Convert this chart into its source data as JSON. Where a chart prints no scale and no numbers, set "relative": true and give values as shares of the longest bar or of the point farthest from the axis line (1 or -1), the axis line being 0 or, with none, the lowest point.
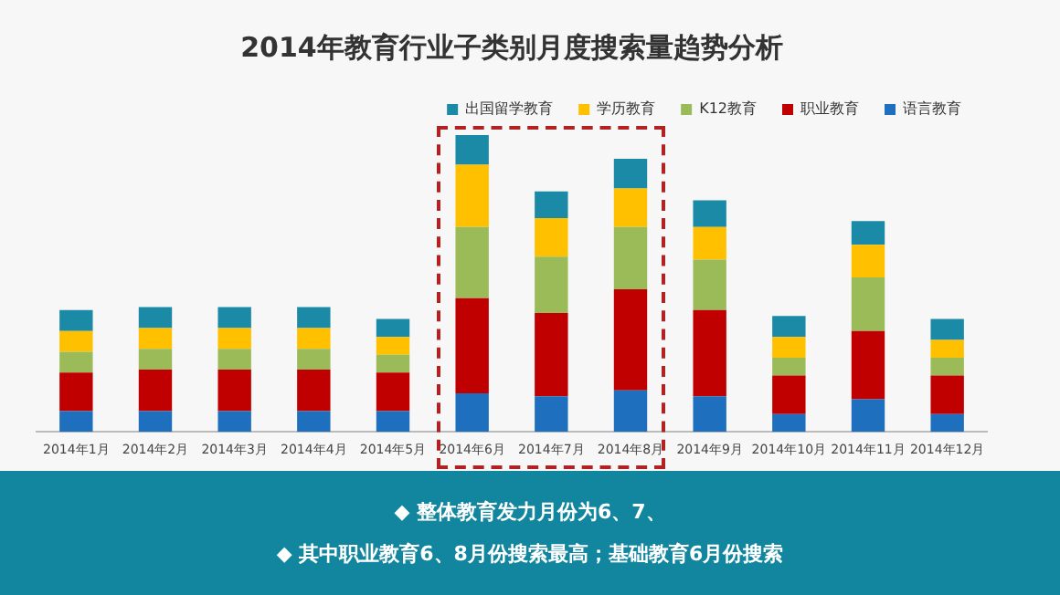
{
  "chart_data": {
    "type": "bar",
    "title": "2014年教育行业子类别月度搜索量趋势分析",
    "stacked": true,
    "relative": true,
    "legend": "top right",
    "grid": false,
    "categories": [
      "2014年1月",
      "2014年2月",
      "2014年3月",
      "2014年4月",
      "2014年5月",
      "2014年6月",
      "2014年7月",
      "2014年8月",
      "2014年9月",
      "2014年10月",
      "2014年11月",
      "2014年12月"
    ],
    "series": [
      {
        "name": "语言教育",
        "color": "#1f6fbf",
        "values": [
          0.07,
          0.07,
          0.07,
          0.07,
          0.07,
          0.13,
          0.12,
          0.14,
          0.12,
          0.06,
          0.11,
          0.06
        ]
      },
      {
        "name": "职业教育",
        "color": "#c00000",
        "values": [
          0.13,
          0.14,
          0.14,
          0.14,
          0.13,
          0.32,
          0.28,
          0.34,
          0.29,
          0.13,
          0.23,
          0.13
        ]
      },
      {
        "name": "K12教育",
        "color": "#9bbb59",
        "values": [
          0.07,
          0.07,
          0.07,
          0.07,
          0.06,
          0.24,
          0.19,
          0.21,
          0.17,
          0.06,
          0.18,
          0.06
        ]
      },
      {
        "name": "学历教育",
        "color": "#ffc000",
        "values": [
          0.07,
          0.07,
          0.07,
          0.07,
          0.06,
          0.21,
          0.13,
          0.13,
          0.11,
          0.07,
          0.11,
          0.06
        ]
      },
      {
        "name": "出国留学教育",
        "color": "#1a8aa6",
        "values": [
          0.07,
          0.07,
          0.07,
          0.07,
          0.06,
          0.1,
          0.09,
          0.1,
          0.09,
          0.07,
          0.08,
          0.07
        ]
      }
    ],
    "annotations": [
      "◆ 整体教育发力月份为6、7、",
      "◆ 其中职业教育6、8月份搜索最高；基础教育6月份搜索"
    ]
  }
}
